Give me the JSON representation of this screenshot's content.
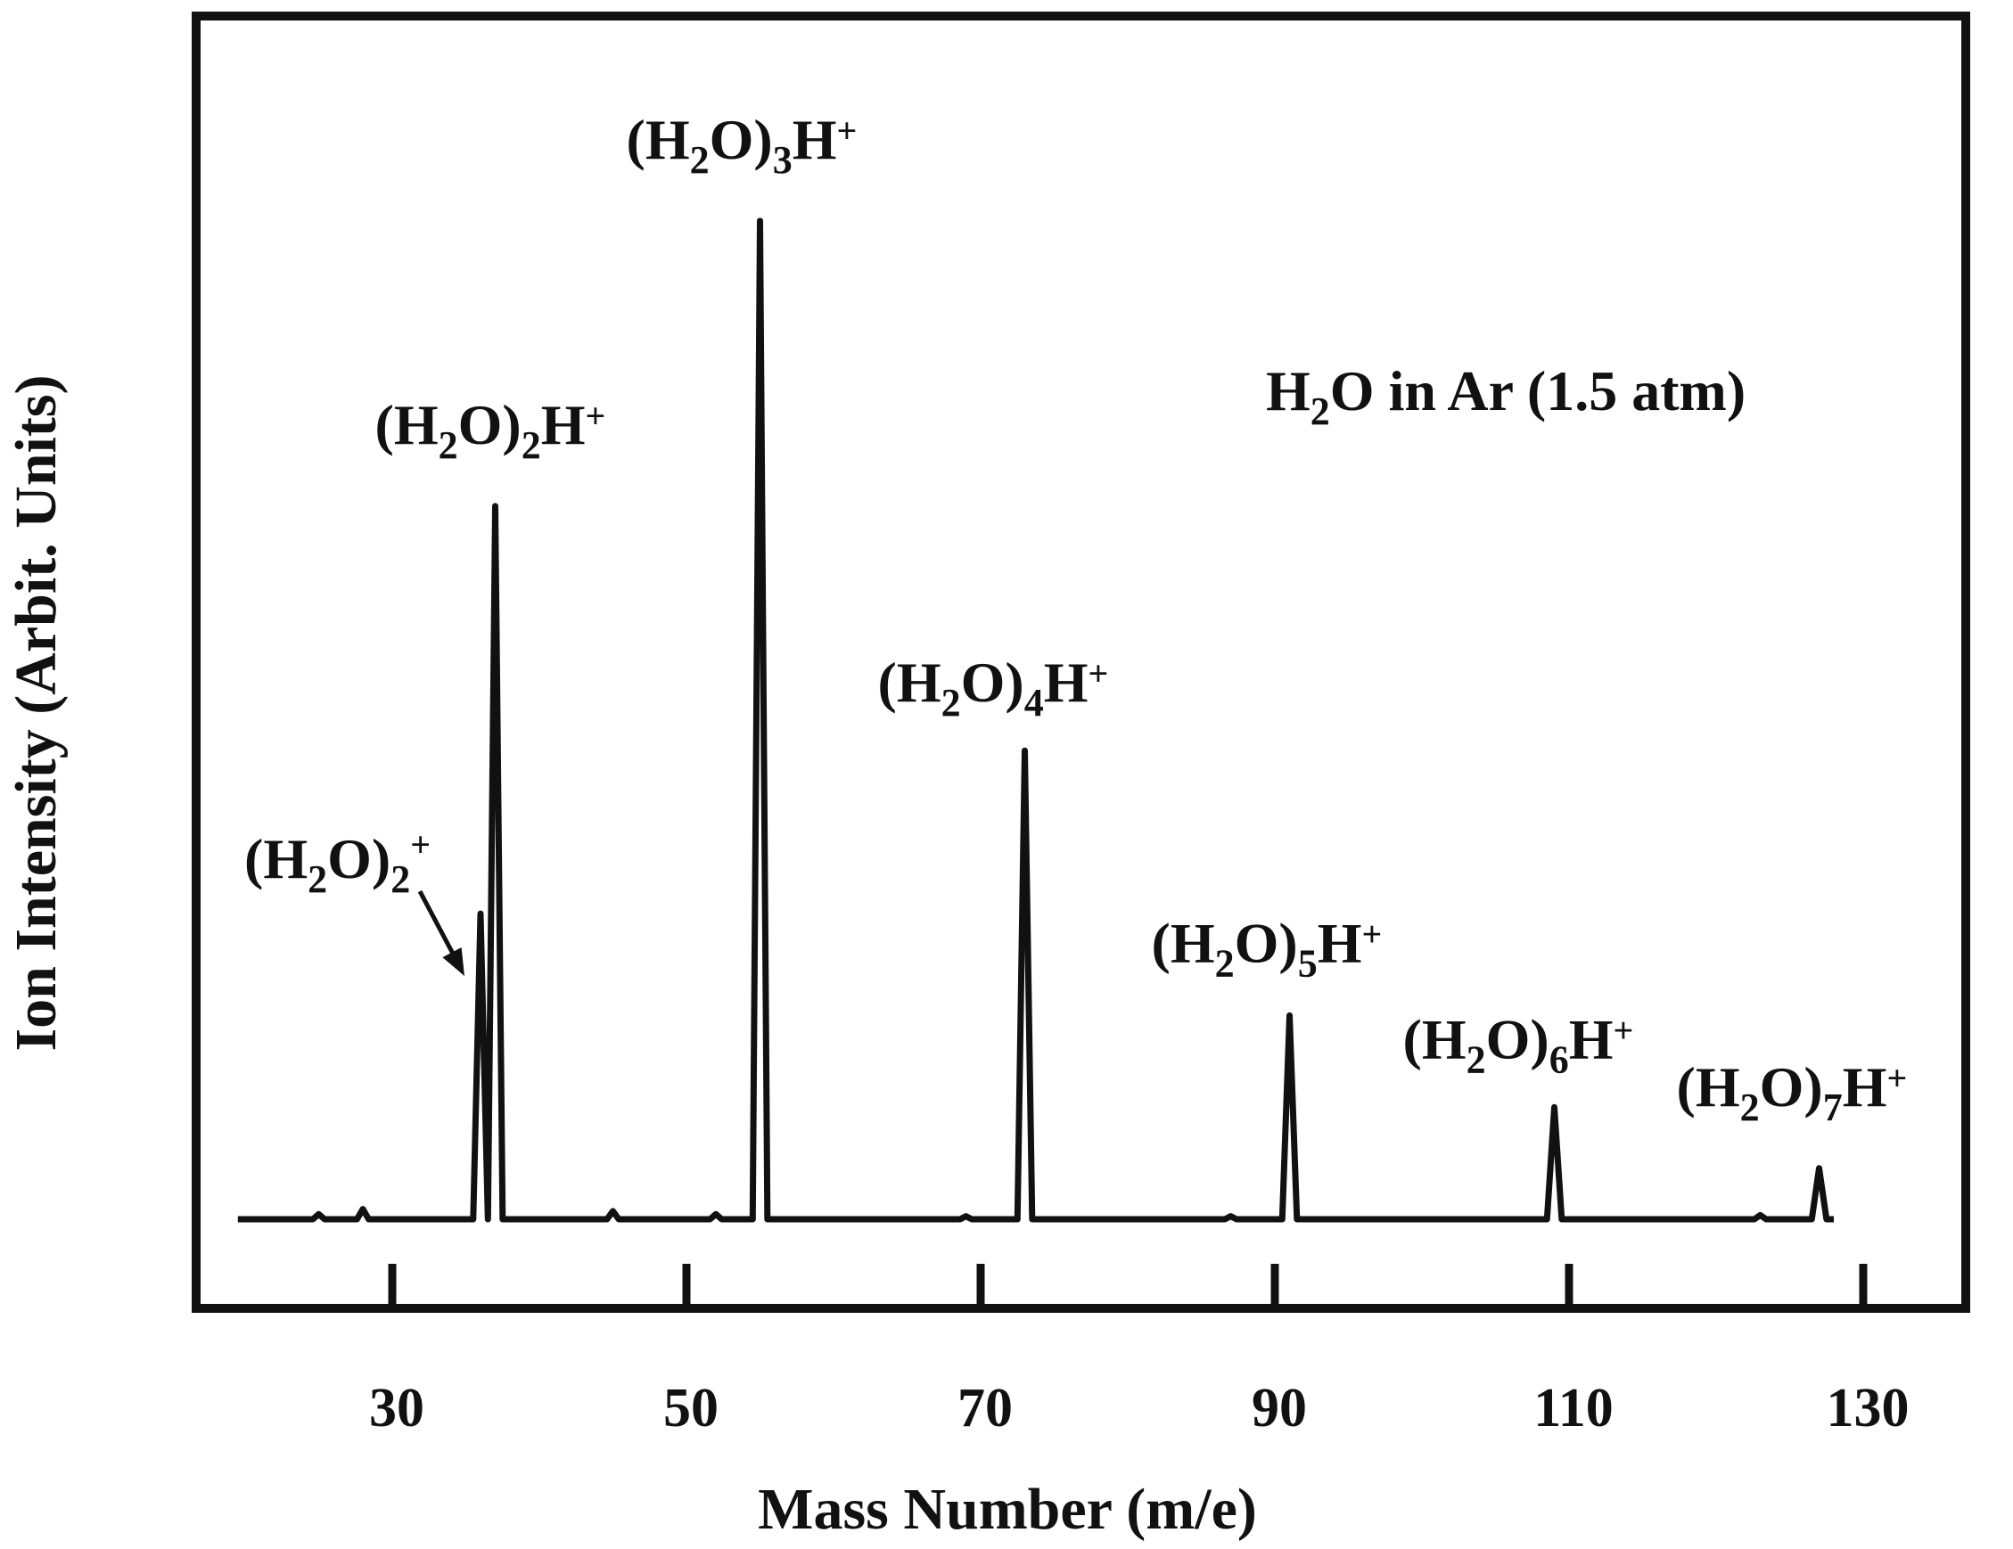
{
  "chart_data": {
    "type": "line",
    "title": "",
    "annotation": "H₂O in Ar (1.5 atm)",
    "xlabel": "Mass Number (m/e)",
    "ylabel": "Ion Intensity (Arbit. Units)",
    "xlim": [
      20,
      130
    ],
    "ylim": [
      0,
      100
    ],
    "x_ticks": [
      30,
      50,
      70,
      90,
      110,
      130
    ],
    "y_ticks": [],
    "grid": false,
    "legend": "none",
    "color": "#111111",
    "series": [
      {
        "peaks": [
          {
            "mass": 36,
            "intensity": 30,
            "label_main": "(H",
            "label_sub": "2",
            "label_mid": "O)",
            "label_sub2": "2",
            "label_sup": "+",
            "label_end": ""
          },
          {
            "mass": 37,
            "intensity": 70,
            "label_main": "(H",
            "label_sub": "2",
            "label_mid": "O)",
            "label_sub2": "2",
            "label_sup": "",
            "label_end": "H",
            "label_sup2": "+"
          },
          {
            "mass": 55,
            "intensity": 98,
            "label_main": "(H",
            "label_sub": "2",
            "label_mid": "O)",
            "label_sub2": "3",
            "label_sup": "",
            "label_end": "H",
            "label_sup2": "+"
          },
          {
            "mass": 73,
            "intensity": 46,
            "label_main": "(H",
            "label_sub": "2",
            "label_mid": "O)",
            "label_sub2": "4",
            "label_sup": "",
            "label_end": "H",
            "label_sup2": "+"
          },
          {
            "mass": 91,
            "intensity": 20,
            "label_main": "(H",
            "label_sub": "2",
            "label_mid": "O)",
            "label_sub2": "5",
            "label_sup": "",
            "label_end": "H",
            "label_sup2": "+"
          },
          {
            "mass": 109,
            "intensity": 11,
            "label_main": "(H",
            "label_sub": "2",
            "label_mid": "O)",
            "label_sub2": "6",
            "label_sup": "",
            "label_end": "H",
            "label_sup2": "+"
          },
          {
            "mass": 127,
            "intensity": 5,
            "label_main": "(H",
            "label_sub": "2",
            "label_mid": "O)",
            "label_sub2": "7",
            "label_sup": "",
            "label_end": "H",
            "label_sup2": "+"
          }
        ],
        "minor_bumps": [
          {
            "mass": 25,
            "intensity": 0.5
          },
          {
            "mass": 28,
            "intensity": 1
          },
          {
            "mass": 45,
            "intensity": 0.8
          },
          {
            "mass": 52,
            "intensity": 0.5
          },
          {
            "mass": 69,
            "intensity": 0.3
          },
          {
            "mass": 87,
            "intensity": 0.3
          },
          {
            "mass": 123,
            "intensity": 0.4
          }
        ]
      }
    ]
  }
}
